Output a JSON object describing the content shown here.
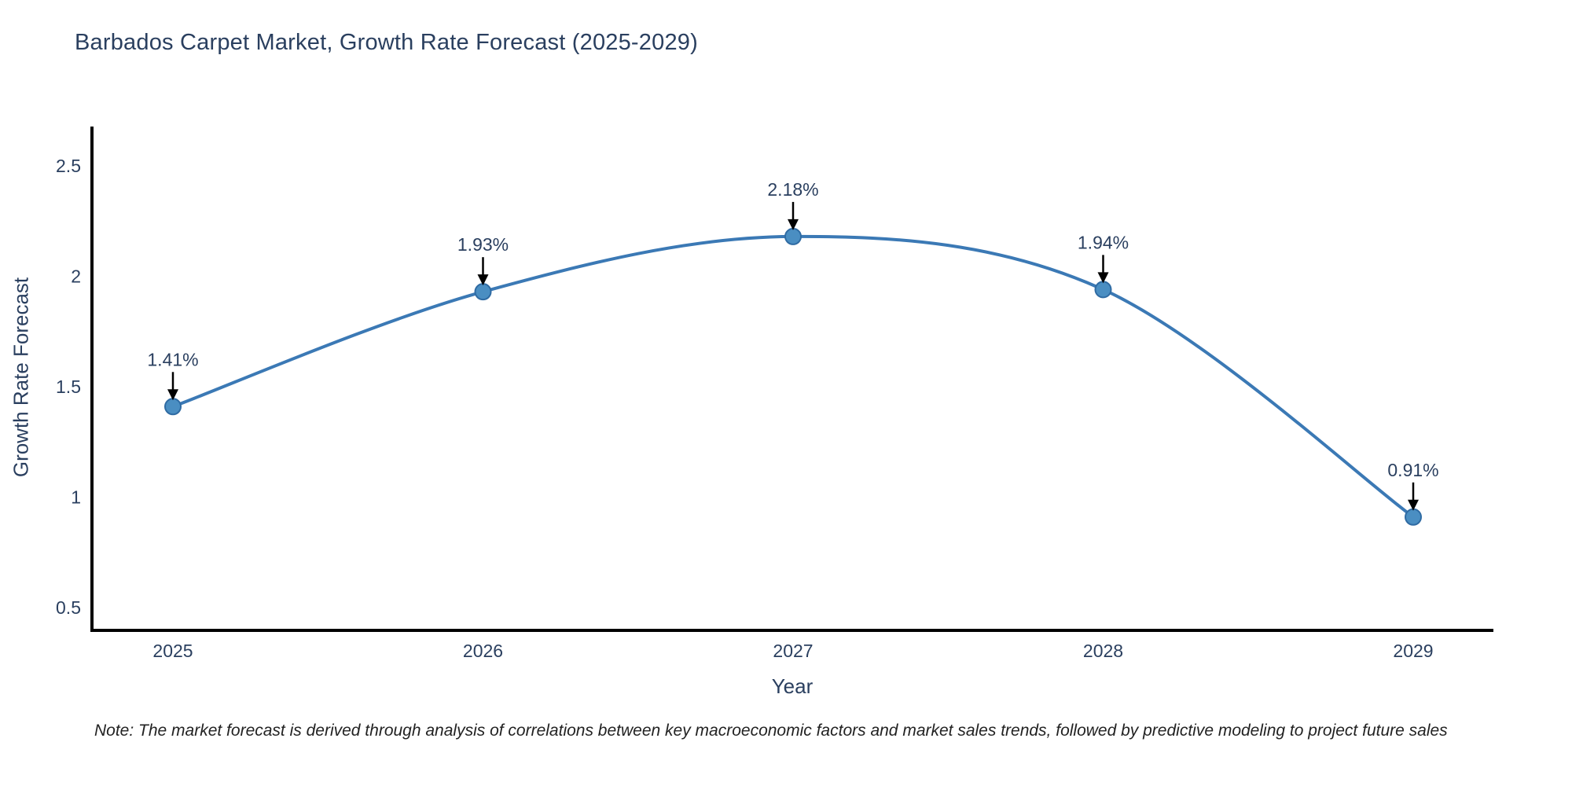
{
  "chart_data": {
    "type": "line",
    "title": "Barbados Carpet Market, Growth Rate Forecast (2025-2029)",
    "xlabel": "Year",
    "ylabel": "Growth Rate Forecast",
    "x": [
      "2025",
      "2026",
      "2027",
      "2028",
      "2029"
    ],
    "values": [
      1.41,
      1.93,
      2.18,
      1.94,
      0.91
    ],
    "point_labels": [
      "1.41%",
      "1.93%",
      "2.18%",
      "1.94%",
      "0.91%"
    ],
    "yticks": [
      0.5,
      1,
      1.5,
      2,
      2.5
    ],
    "ylim": [
      0.4,
      2.68
    ],
    "grid": false,
    "legend_position": "none",
    "colors": {
      "line": "#3b79b5",
      "marker_fill": "#4a8ec2",
      "marker_edge": "#2f6ba3",
      "arrow": "#000000",
      "axis_line": "#000000",
      "chart_text": "#2a3f5f"
    }
  },
  "note": {
    "text": "Note: The market forecast is derived through analysis of correlations between key macroeconomic factors and market sales trends, followed by predictive modeling to project future sales"
  }
}
